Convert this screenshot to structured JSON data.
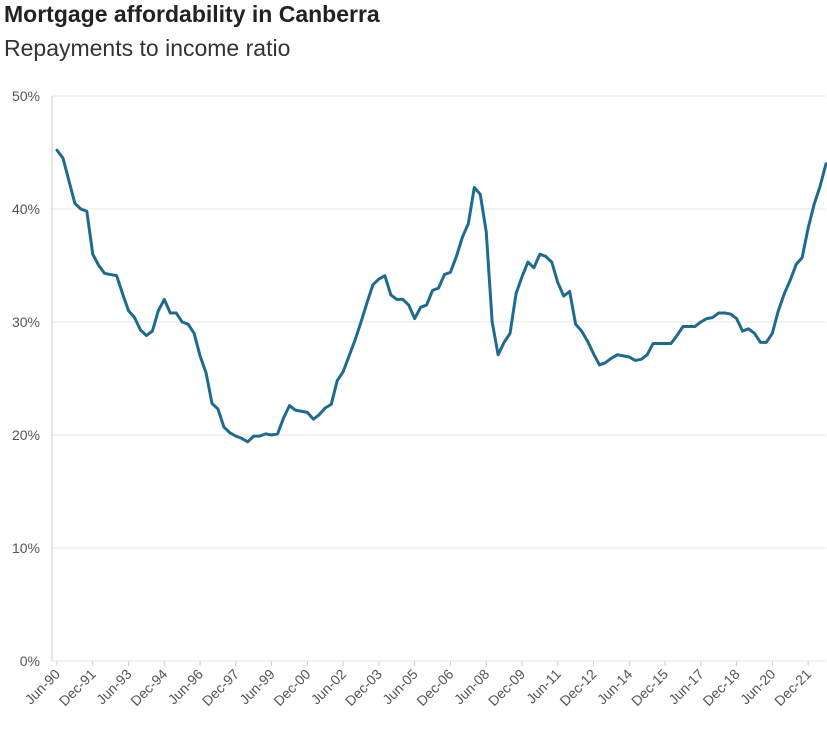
{
  "chart_data": {
    "type": "line",
    "title": "Mortgage affordability in Canberra",
    "subtitle": "Repayments to income ratio",
    "categories": [
      "Jun-90",
      null,
      null,
      null,
      null,
      null,
      "Dec-91",
      null,
      null,
      null,
      null,
      null,
      "Jun-93",
      null,
      null,
      null,
      null,
      null,
      "Dec-94",
      null,
      null,
      null,
      null,
      null,
      "Jun-96",
      null,
      null,
      null,
      null,
      null,
      "Dec-97",
      null,
      null,
      null,
      null,
      null,
      "Jun-99",
      null,
      null,
      null,
      null,
      null,
      "Dec-00",
      null,
      null,
      null,
      null,
      null,
      "Jun-02",
      null,
      null,
      null,
      null,
      null,
      "Dec-03",
      null,
      null,
      null,
      null,
      null,
      "Jun-05",
      null,
      null,
      null,
      null,
      null,
      "Dec-06",
      null,
      null,
      null,
      null,
      null,
      "Jun-08",
      null,
      null,
      null,
      null,
      null,
      "Dec-09",
      null,
      null,
      null,
      null,
      null,
      "Jun-11",
      null,
      null,
      null,
      null,
      null,
      "Dec-12",
      null,
      null,
      null,
      null,
      null,
      "Jun-14",
      null,
      null,
      null,
      null,
      null,
      "Dec-15",
      null,
      null,
      null,
      null,
      null,
      "Jun-17",
      null,
      null,
      null,
      null,
      null,
      "Dec-18",
      null,
      null,
      null,
      null,
      null,
      "Jun-20",
      null,
      null,
      null,
      null,
      null,
      "Dec-21",
      null,
      null,
      null
    ],
    "values": [
      45.2,
      44.5,
      42.5,
      40.5,
      40,
      39.8,
      36,
      35,
      34.3,
      34.2,
      34.1,
      32.5,
      31,
      30.4,
      29.3,
      28.8,
      29.2,
      31,
      32,
      30.8,
      30.8,
      30,
      29.8,
      29,
      27,
      25.5,
      22.8,
      22.3,
      20.7,
      20.2,
      19.9,
      19.7,
      19.4,
      19.9,
      19.9,
      20.1,
      20,
      20.1,
      21.5,
      22.6,
      22.2,
      22.1,
      22,
      21.4,
      21.8,
      22.4,
      22.7,
      24.8,
      25.6,
      27,
      28.4,
      30,
      31.7,
      33.3,
      33.8,
      34.1,
      32.4,
      32,
      32,
      31.5,
      30.3,
      31.3,
      31.5,
      32.8,
      33,
      34.2,
      34.4,
      35.8,
      37.5,
      38.7,
      41.9,
      41.3,
      38,
      30,
      27.1,
      28.2,
      29,
      32.5,
      34,
      35.3,
      34.8,
      36,
      35.8,
      35.3,
      33.5,
      32.3,
      32.7,
      29.8,
      29.2,
      28.3,
      27.2,
      26.2,
      26.4,
      26.8,
      27.1,
      27,
      26.9,
      26.6,
      26.7,
      27.1,
      28.1,
      28.1,
      28.1,
      28.1,
      28.8,
      29.6,
      29.6,
      29.6,
      30,
      30.3,
      30.4,
      30.8,
      30.8,
      30.7,
      30.3,
      29.2,
      29.4,
      29,
      28.2,
      28.2,
      29,
      31,
      32.5,
      33.7,
      35.1,
      35.7,
      38.3,
      40.4,
      42,
      44
    ],
    "color": "#1f6a8f",
    "ylim": [
      0,
      50
    ],
    "yticks": [
      {
        "value": 0,
        "label": "0%"
      },
      {
        "value": 10,
        "label": "10%"
      },
      {
        "value": 20,
        "label": "20%"
      },
      {
        "value": 30,
        "label": "30%"
      },
      {
        "value": 40,
        "label": "40%"
      },
      {
        "value": 50,
        "label": "50%"
      }
    ],
    "grid": true
  }
}
